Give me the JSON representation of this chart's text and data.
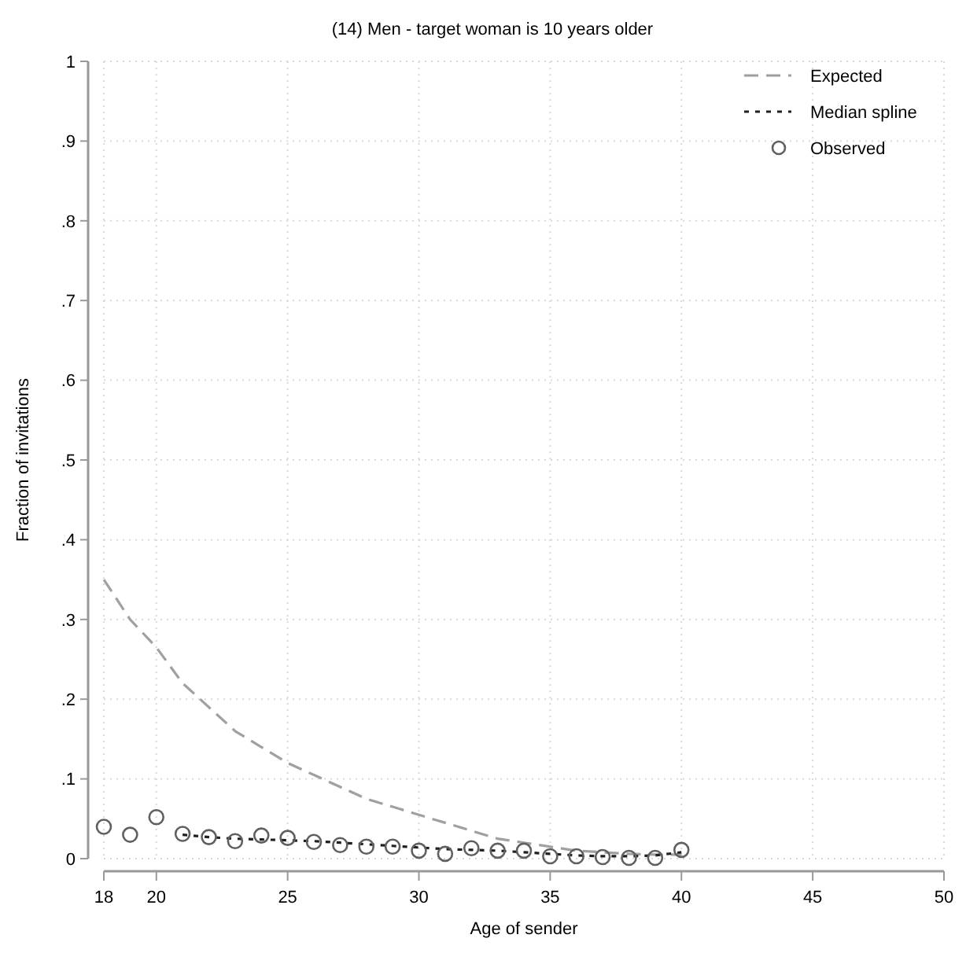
{
  "chart_data": {
    "type": "line",
    "title": "(14) Men - target woman is 10 years older",
    "xlabel": "Age of sender",
    "ylabel": "Fraction of invitations",
    "x": [
      18,
      19,
      20,
      21,
      22,
      23,
      24,
      25,
      26,
      27,
      28,
      29,
      30,
      31,
      32,
      33,
      34,
      35,
      36,
      37,
      38,
      39,
      40
    ],
    "series": [
      {
        "name": "Expected",
        "color": "#a0a0a0",
        "line_style": "dashed",
        "values": [
          0.35,
          0.3,
          0.265,
          0.22,
          0.19,
          0.16,
          0.14,
          0.12,
          0.105,
          0.09,
          0.075,
          0.065,
          0.055,
          0.045,
          0.035,
          0.025,
          0.02,
          0.015,
          0.01,
          0.008,
          0.006,
          0.005,
          0.005
        ]
      },
      {
        "name": "Median spline",
        "color": "#202020",
        "line_style": "dotted",
        "x": [
          21,
          22,
          23,
          24,
          25,
          26,
          27,
          28,
          29,
          30,
          31,
          32,
          33,
          34,
          35,
          36,
          37,
          38,
          39,
          40
        ],
        "values": [
          0.03,
          0.027,
          0.025,
          0.024,
          0.023,
          0.022,
          0.02,
          0.018,
          0.016,
          0.014,
          0.012,
          0.011,
          0.01,
          0.008,
          0.006,
          0.004,
          0.003,
          0.003,
          0.004,
          0.008
        ]
      },
      {
        "name": "Observed",
        "type": "scatter",
        "color": "#606060",
        "marker": "circle",
        "values": [
          0.04,
          0.03,
          0.052,
          0.031,
          0.027,
          0.022,
          0.029,
          0.026,
          0.021,
          0.017,
          0.015,
          0.015,
          0.01,
          0.006,
          0.013,
          0.01,
          0.01,
          0.003,
          0.003,
          0.002,
          0.001,
          0.001,
          0.011
        ]
      }
    ],
    "xlim": [
      18,
      50
    ],
    "xticks": [
      18,
      20,
      25,
      30,
      35,
      40,
      45,
      50
    ],
    "ylim": [
      0,
      1
    ],
    "yticks": [
      {
        "value": 0,
        "label": "0"
      },
      {
        "value": 0.1,
        "label": ".1"
      },
      {
        "value": 0.2,
        "label": ".2"
      },
      {
        "value": 0.3,
        "label": ".3"
      },
      {
        "value": 0.4,
        "label": ".4"
      },
      {
        "value": 0.5,
        "label": ".5"
      },
      {
        "value": 0.6,
        "label": ".6"
      },
      {
        "value": 0.7,
        "label": ".7"
      },
      {
        "value": 0.8,
        "label": ".8"
      },
      {
        "value": 0.9,
        "label": ".9"
      },
      {
        "value": 1,
        "label": "1"
      }
    ],
    "grid": true,
    "legend": "top right"
  }
}
